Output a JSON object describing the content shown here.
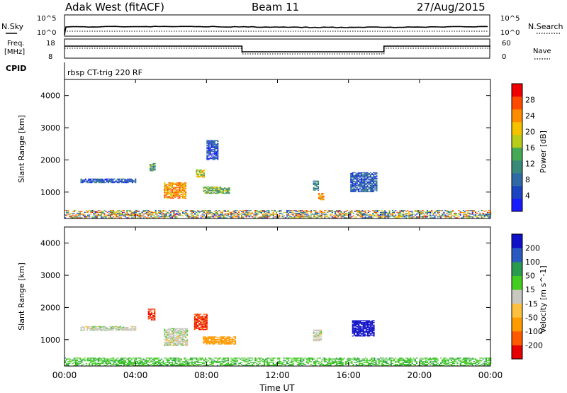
{
  "header": {
    "site": "Adak West (fitACF)",
    "beam": "Beam 11",
    "date": "27/Aug/2015"
  },
  "top_panels": {
    "nsky_label": "N.Sky",
    "nsearch_label": "N.Search",
    "noise_tick_hi": "10^5",
    "noise_tick_lo": "10^0",
    "freq_label": "Freq.",
    "freq_unit": "[MHz]",
    "freq_ticks": [
      "18",
      "8"
    ],
    "nave_label": "Nave",
    "nave_ticks": [
      "60",
      "0"
    ],
    "cpid_label": "CPID",
    "cpid_text": "rbsp CT-trig 220 RF"
  },
  "colors": {
    "power": [
      "#1a1aff",
      "#1a44c0",
      "#2f6aa6",
      "#3a8a7a",
      "#44aa55",
      "#b8cc1a",
      "#f5c200",
      "#ff8c00",
      "#ff4a00",
      "#f00000"
    ],
    "velocity": [
      "#e60000",
      "#ff5a00",
      "#ff9a00",
      "#ffc040",
      "#c8c8c0",
      "#44cc22",
      "#2a9a50",
      "#2a5abf",
      "#1010c8"
    ]
  },
  "chart_data": [
    {
      "type": "heatmap",
      "name": "Power",
      "xlabel": "",
      "ylabel": "Slant Range [km]",
      "xlim": [
        "00:00",
        "24:00"
      ],
      "ylim": [
        180,
        4500
      ],
      "y_ticks": [
        "1000",
        "2000",
        "3000",
        "4000"
      ],
      "colorbar": {
        "label": "Power [dB]",
        "ticks": [
          "4",
          "8",
          "12",
          "16",
          "20",
          "24",
          "28"
        ],
        "range": [
          0,
          30
        ]
      },
      "regions": [
        {
          "t0": 0.9,
          "t1": 4.0,
          "r0": 1280,
          "r1": 1420,
          "value": 6
        },
        {
          "t0": 5.6,
          "t1": 6.8,
          "r0": 800,
          "r1": 1300,
          "value": 22
        },
        {
          "t0": 7.4,
          "t1": 7.9,
          "r0": 1450,
          "r1": 1700,
          "value": 18
        },
        {
          "t0": 7.8,
          "t1": 9.3,
          "r0": 950,
          "r1": 1150,
          "value": 14
        },
        {
          "t0": 8.0,
          "t1": 8.6,
          "r0": 2000,
          "r1": 2600,
          "value": 5
        },
        {
          "t0": 4.8,
          "t1": 5.1,
          "r0": 1650,
          "r1": 1900,
          "value": 12
        },
        {
          "t0": 14.0,
          "t1": 14.3,
          "r0": 1050,
          "r1": 1350,
          "value": 10
        },
        {
          "t0": 14.3,
          "t1": 14.6,
          "r0": 750,
          "r1": 950,
          "value": 22
        },
        {
          "t0": 16.1,
          "t1": 17.6,
          "r0": 1000,
          "r1": 1600,
          "value": 6
        },
        {
          "t0": 3.2,
          "t1": 4.3,
          "r0": 250,
          "r1": 330,
          "value": 28
        },
        {
          "t0": 0.0,
          "t1": 24.0,
          "r0": 190,
          "r1": 420,
          "value": 12
        }
      ]
    },
    {
      "type": "heatmap",
      "name": "Velocity",
      "xlabel": "Time UT",
      "ylabel": "Slant Range [km]",
      "xlim": [
        "00:00",
        "24:00"
      ],
      "ylim": [
        180,
        4500
      ],
      "x_ticks": [
        "00:00",
        "04:00",
        "08:00",
        "12:00",
        "16:00",
        "20:00",
        "00:00"
      ],
      "y_ticks": [
        "1000",
        "2000",
        "3000",
        "4000"
      ],
      "colorbar": {
        "label": "Velocity [m s^-1]",
        "ticks": [
          "-200",
          "-100",
          "-50",
          "-15",
          "15",
          "50",
          "100",
          "200"
        ],
        "range": [
          -250,
          250
        ]
      },
      "regions": [
        {
          "t0": 0.9,
          "t1": 4.0,
          "r0": 1280,
          "r1": 1420,
          "value": 0
        },
        {
          "t0": 5.6,
          "t1": 6.9,
          "r0": 800,
          "r1": 1350,
          "value": 0
        },
        {
          "t0": 7.3,
          "t1": 8.0,
          "r0": 1300,
          "r1": 1800,
          "value": -200
        },
        {
          "t0": 7.8,
          "t1": 9.6,
          "r0": 850,
          "r1": 1100,
          "value": -80
        },
        {
          "t0": 4.7,
          "t1": 5.1,
          "r0": 1600,
          "r1": 1950,
          "value": -200
        },
        {
          "t0": 16.2,
          "t1": 17.4,
          "r0": 1100,
          "r1": 1600,
          "value": 220
        },
        {
          "t0": 14.0,
          "t1": 14.5,
          "r0": 950,
          "r1": 1300,
          "value": 0
        },
        {
          "t0": 3.0,
          "t1": 4.5,
          "r0": 250,
          "r1": 330,
          "value": -220
        },
        {
          "t0": 0.0,
          "t1": 24.0,
          "r0": 190,
          "r1": 420,
          "value": 40
        }
      ]
    }
  ]
}
